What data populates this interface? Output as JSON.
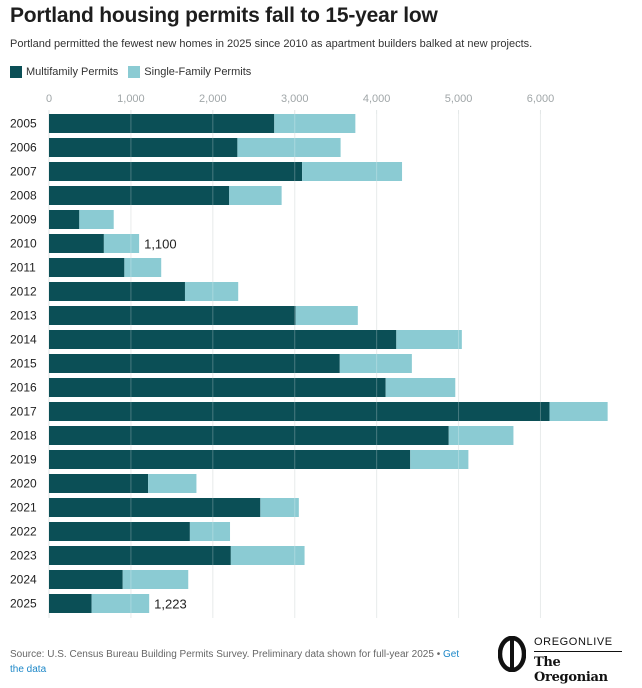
{
  "header": {
    "title": "Portland housing permits fall to 15-year low",
    "subtitle": "Portland permitted the fewest new homes in 2025 since 2010 as apartment builders balked at new projects."
  },
  "colors": {
    "multifamily": "#0b4f56",
    "single_family": "#8bcbd3",
    "grid": "#e2e6e6",
    "axis_text": "#a0a6a8"
  },
  "chart_data": {
    "type": "bar",
    "orientation": "horizontal",
    "stacked": true,
    "categories": [
      "2005",
      "2006",
      "2007",
      "2008",
      "2009",
      "2010",
      "2011",
      "2012",
      "2013",
      "2014",
      "2015",
      "2016",
      "2017",
      "2018",
      "2019",
      "2020",
      "2021",
      "2022",
      "2023",
      "2024",
      "2025"
    ],
    "series": [
      {
        "name": "Multifamily Permits",
        "values": [
          2750,
          2300,
          3090,
          2200,
          370,
          670,
          920,
          1660,
          3010,
          4240,
          3550,
          4110,
          6110,
          4880,
          4410,
          1210,
          2580,
          1720,
          2220,
          900,
          520
        ]
      },
      {
        "name": "Single-Family Permits",
        "values": [
          990,
          1260,
          1220,
          640,
          420,
          430,
          450,
          650,
          760,
          800,
          880,
          850,
          710,
          790,
          710,
          590,
          470,
          490,
          900,
          800,
          703
        ]
      }
    ],
    "xlim": [
      0,
      6800
    ],
    "xticks": [
      0,
      1000,
      2000,
      3000,
      4000,
      5000,
      6000
    ],
    "xtick_labels": [
      "0",
      "1,000",
      "2,000",
      "3,000",
      "4,000",
      "5,000",
      "6,000"
    ],
    "annotations": [
      {
        "year": "2010",
        "label": "1,100"
      },
      {
        "year": "2025",
        "label": "1,223"
      }
    ],
    "grid": true,
    "legend_position": "top-left"
  },
  "footer": {
    "source": "Source: U.S. Census Bureau Building Permits Survey. Preliminary data shown for full-year 2025",
    "bullet": "•",
    "link_text": "Get the data"
  },
  "logo": {
    "top": "OREGONLIVE",
    "bottom": "The Oregonian"
  }
}
